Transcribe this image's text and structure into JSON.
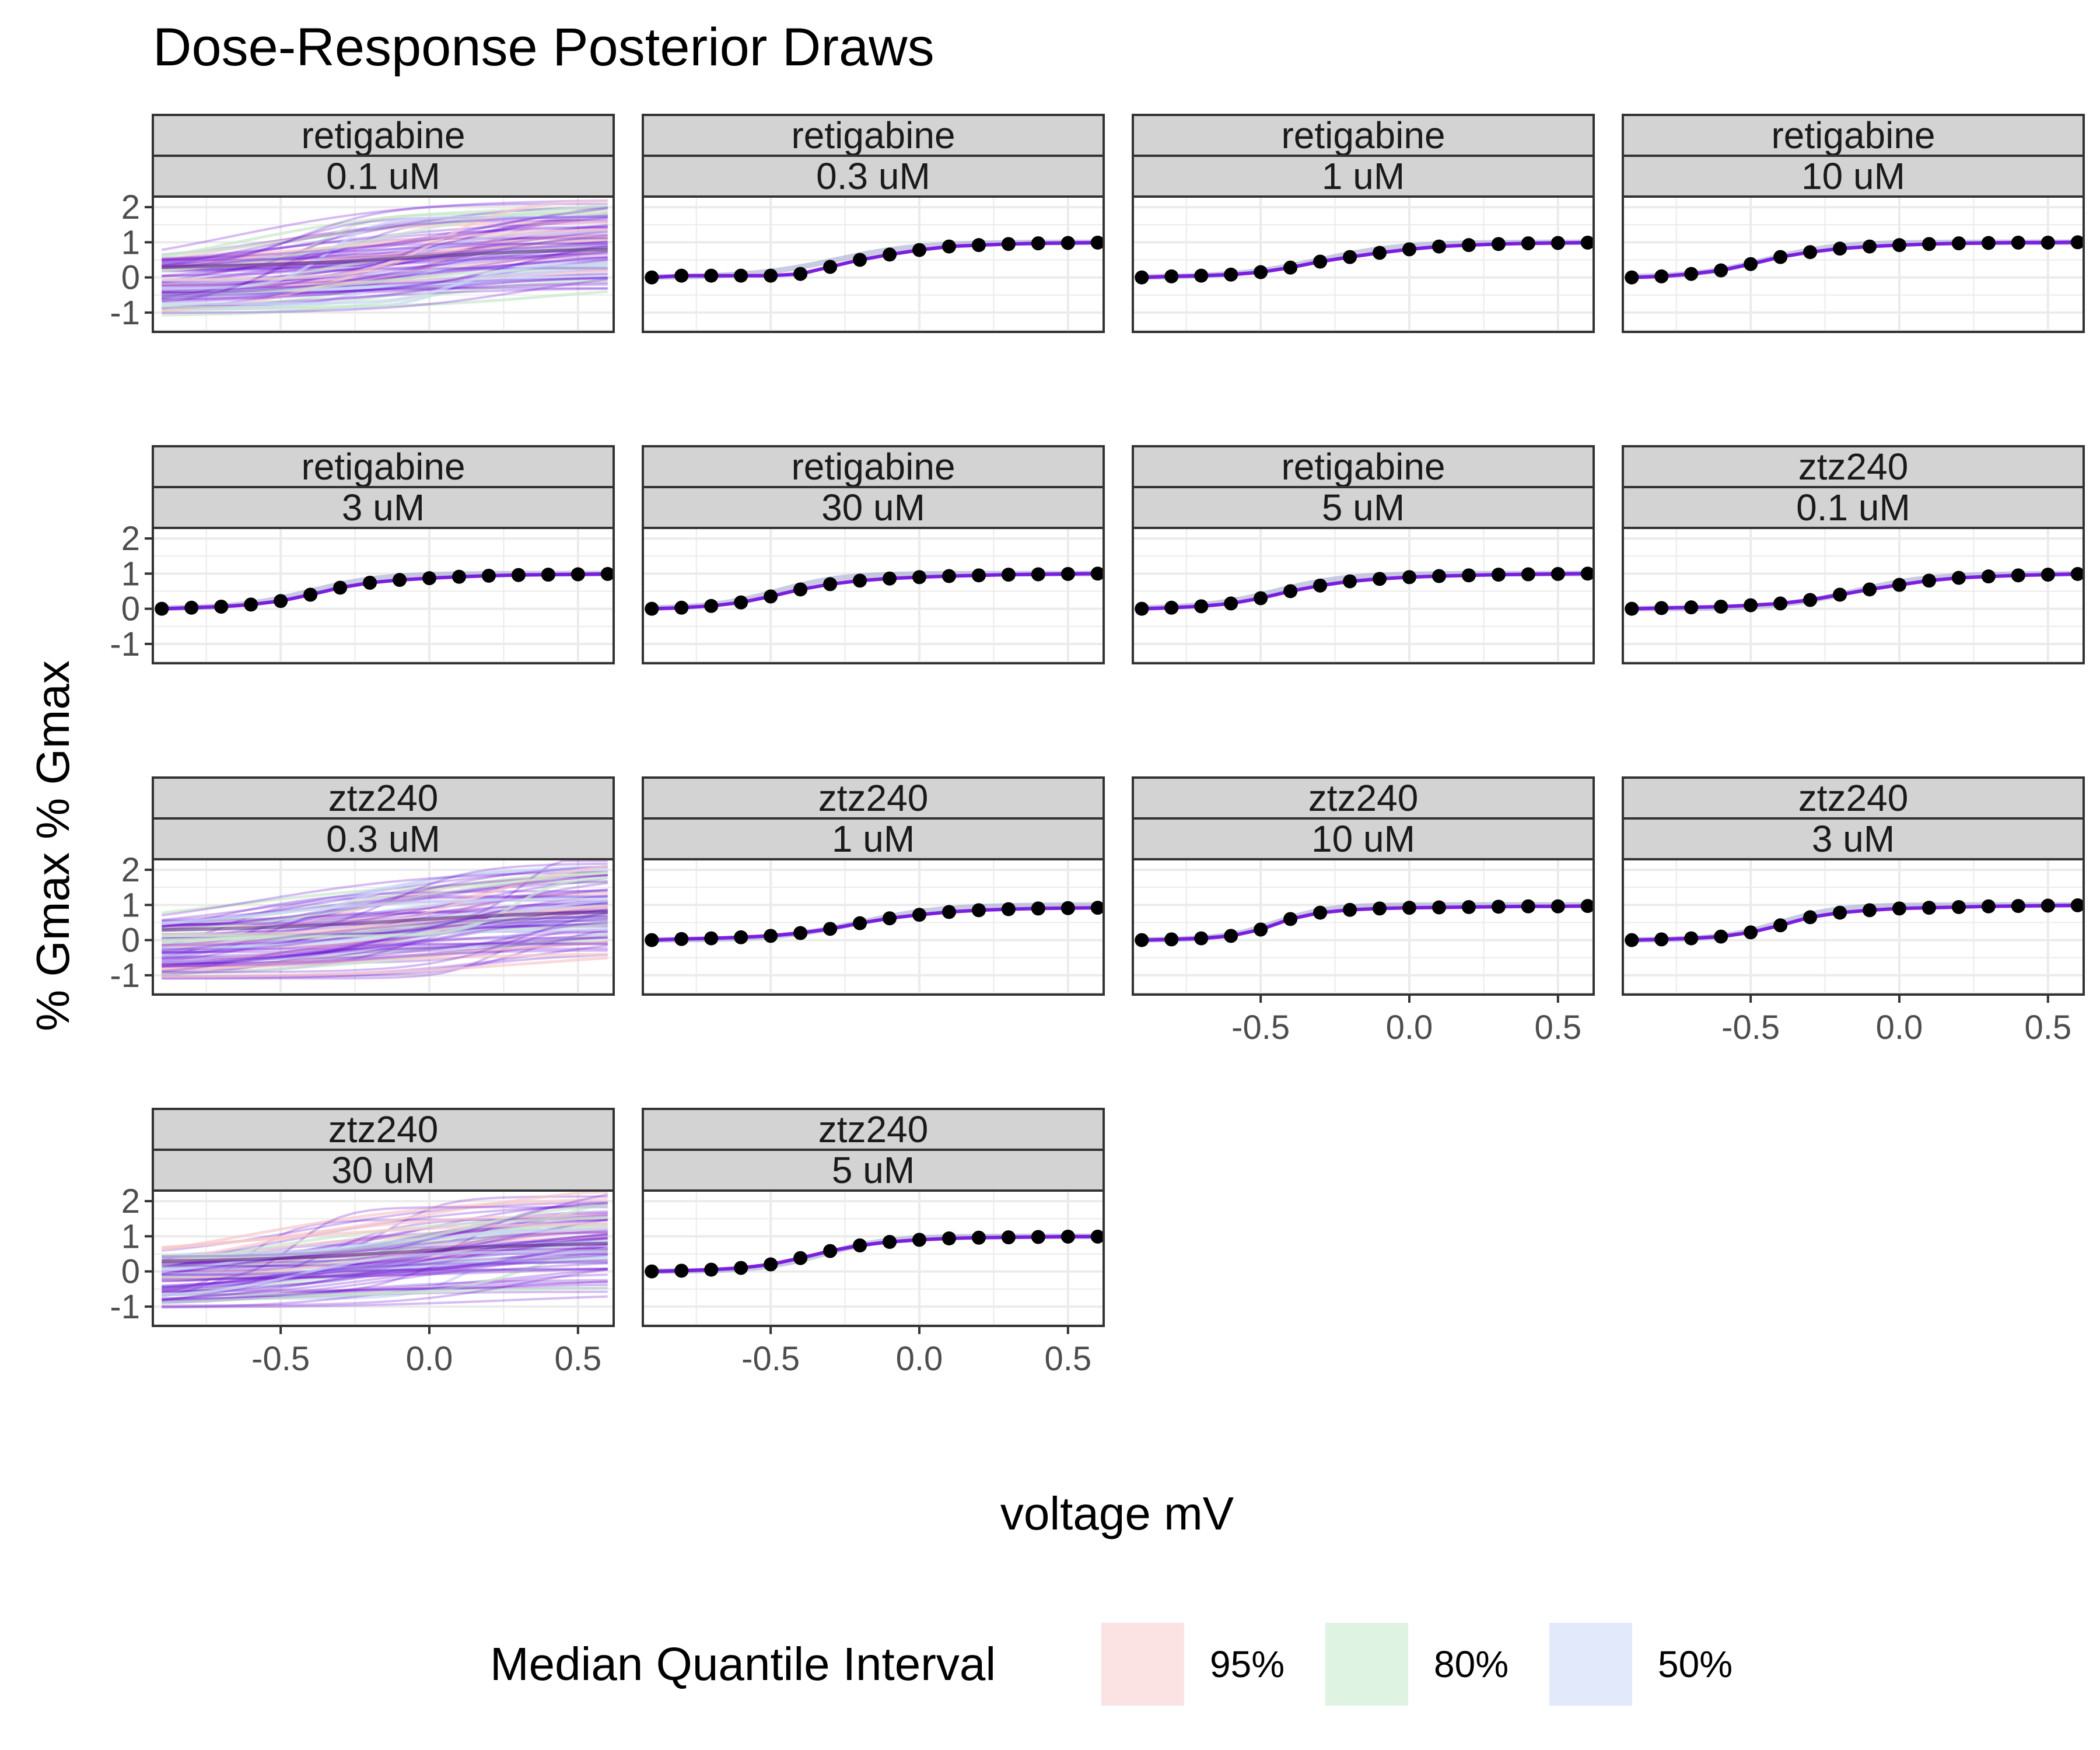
{
  "chart_data": {
    "type": "line",
    "title": "Dose-Response Posterior Draws",
    "xlabel": "voltage mV",
    "ylabel": "% Gmax % Gmax",
    "xlim": [
      -0.93,
      0.62
    ],
    "ylim": [
      -1.55,
      2.3
    ],
    "x_ticks": [
      -0.5,
      0.0,
      0.5
    ],
    "x_tick_labels": [
      "-0.5",
      "0.0",
      "0.5"
    ],
    "y_ticks": [
      -1,
      0,
      1,
      2
    ],
    "y_tick_labels": [
      "-1",
      "0",
      "1",
      "2"
    ],
    "grid": true,
    "legend": {
      "title": "Median Quantile Interval",
      "position": "bottom",
      "entries": [
        {
          "label": "95%",
          "color": "#fbe3e4"
        },
        {
          "label": "80%",
          "color": "#dff3e2"
        },
        {
          "label": "50%",
          "color": "#e1e9fb"
        }
      ]
    },
    "voltages": [
      -0.9,
      -0.8,
      -0.7,
      -0.6,
      -0.5,
      -0.4,
      -0.3,
      -0.2,
      -0.1,
      0.0,
      0.1,
      0.2,
      0.3,
      0.4,
      0.5,
      0.6
    ],
    "colors": {
      "draws": "#6a0dd4",
      "median": "#7a1fe0",
      "points": "#000000",
      "strip_fill": "#d3d3d3",
      "grid": "#ebebeb"
    },
    "panels": [
      {
        "drug": "retigabine",
        "dose": "0.1 uM",
        "mode": "draws",
        "vhalf": -0.1,
        "k": 0.15
      },
      {
        "drug": "retigabine",
        "dose": "0.3 uM",
        "mode": "points",
        "vhalf": -0.28,
        "k": 0.14,
        "values": [
          0.0,
          0.05,
          0.05,
          0.05,
          0.05,
          0.1,
          0.3,
          0.5,
          0.65,
          0.78,
          0.88,
          0.92,
          0.95,
          0.97,
          0.98,
          0.99
        ]
      },
      {
        "drug": "retigabine",
        "dose": "1 uM",
        "mode": "points",
        "vhalf": -0.3,
        "k": 0.14,
        "values": [
          0.0,
          0.03,
          0.05,
          0.08,
          0.15,
          0.28,
          0.45,
          0.58,
          0.7,
          0.8,
          0.88,
          0.92,
          0.95,
          0.97,
          0.98,
          0.99
        ]
      },
      {
        "drug": "retigabine",
        "dose": "10 uM",
        "mode": "points",
        "vhalf": -0.45,
        "k": 0.12,
        "values": [
          0.0,
          0.03,
          0.1,
          0.2,
          0.38,
          0.58,
          0.72,
          0.82,
          0.88,
          0.92,
          0.95,
          0.97,
          0.98,
          0.99,
          0.99,
          1.0
        ]
      },
      {
        "drug": "retigabine",
        "dose": "3 uM",
        "mode": "points",
        "vhalf": -0.4,
        "k": 0.12,
        "values": [
          0.0,
          0.03,
          0.06,
          0.12,
          0.22,
          0.4,
          0.6,
          0.74,
          0.82,
          0.87,
          0.91,
          0.94,
          0.96,
          0.97,
          0.98,
          0.99
        ]
      },
      {
        "drug": "retigabine",
        "dose": "30 uM",
        "mode": "points",
        "vhalf": -0.48,
        "k": 0.11,
        "values": [
          0.0,
          0.03,
          0.08,
          0.18,
          0.35,
          0.55,
          0.7,
          0.8,
          0.86,
          0.9,
          0.93,
          0.95,
          0.97,
          0.98,
          0.99,
          1.0
        ]
      },
      {
        "drug": "retigabine",
        "dose": "5 uM",
        "mode": "points",
        "vhalf": -0.45,
        "k": 0.12,
        "values": [
          0.0,
          0.03,
          0.07,
          0.15,
          0.3,
          0.5,
          0.66,
          0.78,
          0.85,
          0.9,
          0.93,
          0.95,
          0.97,
          0.98,
          0.99,
          1.0
        ]
      },
      {
        "drug": "ztz240",
        "dose": "0.1 uM",
        "mode": "points",
        "vhalf": -0.15,
        "k": 0.13,
        "values": [
          0.0,
          0.02,
          0.04,
          0.06,
          0.1,
          0.15,
          0.25,
          0.4,
          0.55,
          0.68,
          0.8,
          0.88,
          0.92,
          0.95,
          0.97,
          0.99
        ]
      },
      {
        "drug": "ztz240",
        "dose": "0.3 uM",
        "mode": "draws",
        "vhalf": -0.1,
        "k": 0.15
      },
      {
        "drug": "ztz240",
        "dose": "1 uM",
        "mode": "points",
        "vhalf": -0.2,
        "k": 0.14,
        "values": [
          0.0,
          0.03,
          0.05,
          0.08,
          0.12,
          0.2,
          0.32,
          0.48,
          0.62,
          0.72,
          0.8,
          0.85,
          0.88,
          0.9,
          0.91,
          0.92
        ]
      },
      {
        "drug": "ztz240",
        "dose": "10 uM",
        "mode": "points",
        "vhalf": -0.45,
        "k": 0.09,
        "values": [
          0.0,
          0.02,
          0.05,
          0.12,
          0.3,
          0.6,
          0.78,
          0.86,
          0.9,
          0.92,
          0.93,
          0.94,
          0.95,
          0.96,
          0.96,
          0.97
        ]
      },
      {
        "drug": "ztz240",
        "dose": "3 uM",
        "mode": "points",
        "vhalf": -0.4,
        "k": 0.1,
        "values": [
          0.0,
          0.02,
          0.05,
          0.1,
          0.22,
          0.42,
          0.65,
          0.78,
          0.85,
          0.9,
          0.92,
          0.94,
          0.96,
          0.97,
          0.98,
          0.99
        ]
      },
      {
        "drug": "ztz240",
        "dose": "30 uM",
        "mode": "draws",
        "vhalf": -0.1,
        "k": 0.15
      },
      {
        "drug": "ztz240",
        "dose": "5 uM",
        "mode": "points",
        "vhalf": -0.32,
        "k": 0.11,
        "values": [
          0.0,
          0.02,
          0.05,
          0.1,
          0.2,
          0.38,
          0.58,
          0.74,
          0.84,
          0.9,
          0.94,
          0.96,
          0.97,
          0.98,
          0.99,
          0.99
        ]
      }
    ]
  }
}
